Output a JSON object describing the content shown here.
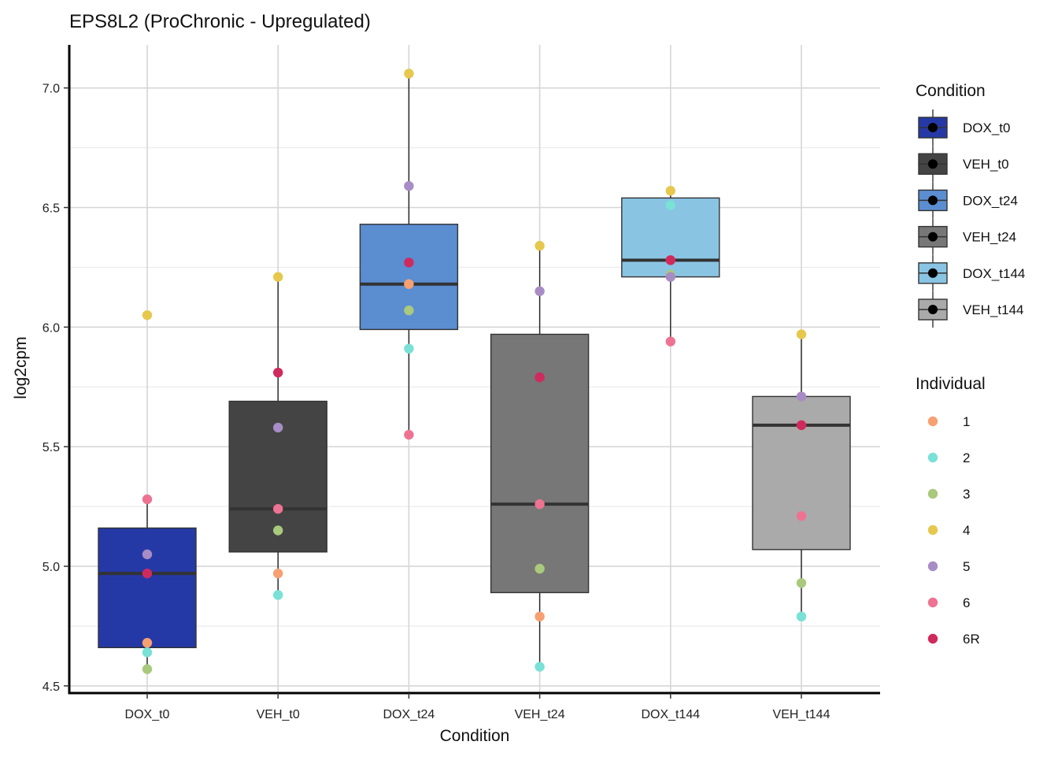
{
  "chart_data": {
    "type": "boxplot",
    "title": "EPS8L2 (ProChronic - Upregulated)",
    "xlabel": "Condition",
    "ylabel": "log2cpm",
    "ylim": [
      4.47,
      7.18
    ],
    "yticks": [
      4.5,
      5.0,
      5.5,
      6.0,
      6.5,
      7.0
    ],
    "ytick_labels": [
      "4.5",
      "5.0",
      "5.5",
      "6.0",
      "6.5",
      "7.0"
    ],
    "categories": [
      "DOX_t0",
      "VEH_t0",
      "DOX_t24",
      "VEH_t24",
      "DOX_t144",
      "VEH_t144"
    ],
    "boxes": [
      {
        "name": "DOX_t0",
        "color": "#2539A6",
        "whisker_low": 4.57,
        "q1": 4.66,
        "median": 4.97,
        "q3": 5.16,
        "whisker_high": 5.28
      },
      {
        "name": "VEH_t0",
        "color": "#444444",
        "whisker_low": 4.88,
        "q1": 5.06,
        "median": 5.24,
        "q3": 5.69,
        "whisker_high": 6.21
      },
      {
        "name": "DOX_t24",
        "color": "#5B8DD1",
        "whisker_low": 5.55,
        "q1": 5.99,
        "median": 6.18,
        "q3": 6.43,
        "whisker_high": 7.06
      },
      {
        "name": "VEH_t24",
        "color": "#777777",
        "whisker_low": 4.58,
        "q1": 4.89,
        "median": 5.26,
        "q3": 5.97,
        "whisker_high": 6.34
      },
      {
        "name": "DOX_t144",
        "color": "#8AC4E3",
        "whisker_low": 5.94,
        "q1": 6.21,
        "median": 6.28,
        "q3": 6.54,
        "whisker_high": 6.57
      },
      {
        "name": "VEH_t144",
        "color": "#AAAAAA",
        "whisker_low": 4.79,
        "q1": 5.07,
        "median": 5.59,
        "q3": 5.71,
        "whisker_high": 5.97
      }
    ],
    "points": [
      {
        "category": "DOX_t0",
        "values": {
          "1": 4.68,
          "2": 4.64,
          "3": 4.57,
          "4": 6.05,
          "5": 5.05,
          "6": 5.28,
          "6R": 4.97
        }
      },
      {
        "category": "VEH_t0",
        "values": {
          "1": 4.97,
          "2": 4.88,
          "3": 5.15,
          "4": 6.21,
          "5": 5.58,
          "6": 5.24,
          "6R": 5.81
        }
      },
      {
        "category": "DOX_t24",
        "values": {
          "1": 6.18,
          "2": 5.91,
          "3": 6.07,
          "4": 7.06,
          "5": 6.59,
          "6": 5.55,
          "6R": 6.27
        }
      },
      {
        "category": "VEH_t24",
        "values": {
          "1": 4.79,
          "2": 4.58,
          "3": 4.99,
          "4": 6.34,
          "5": 6.15,
          "6": 5.26,
          "6R": 5.79
        }
      },
      {
        "category": "DOX_t144",
        "values": {
          "1": 6.28,
          "2": 6.51,
          "3": 6.22,
          "4": 6.57,
          "5": 6.21,
          "6": 5.94,
          "6R": 6.28
        }
      },
      {
        "category": "VEH_t144",
        "values": {
          "1": 5.59,
          "2": 4.79,
          "3": 4.93,
          "4": 5.97,
          "5": 5.71,
          "6": 5.21,
          "6R": 5.59
        }
      }
    ],
    "legend_condition": {
      "title": "Condition",
      "items": [
        {
          "label": "DOX_t0",
          "color": "#2539A6"
        },
        {
          "label": "VEH_t0",
          "color": "#444444"
        },
        {
          "label": "DOX_t24",
          "color": "#5B8DD1"
        },
        {
          "label": "VEH_t24",
          "color": "#777777"
        },
        {
          "label": "DOX_t144",
          "color": "#8AC4E3"
        },
        {
          "label": "VEH_t144",
          "color": "#AAAAAA"
        }
      ]
    },
    "legend_individual": {
      "title": "Individual",
      "items": [
        {
          "label": "1",
          "color": "#F7A072"
        },
        {
          "label": "2",
          "color": "#79E1D6"
        },
        {
          "label": "3",
          "color": "#A9C97C"
        },
        {
          "label": "4",
          "color": "#E6C84F"
        },
        {
          "label": "5",
          "color": "#A88CC6"
        },
        {
          "label": "6",
          "color": "#EE7393"
        },
        {
          "label": "6R",
          "color": "#CF2A5E"
        }
      ]
    }
  }
}
